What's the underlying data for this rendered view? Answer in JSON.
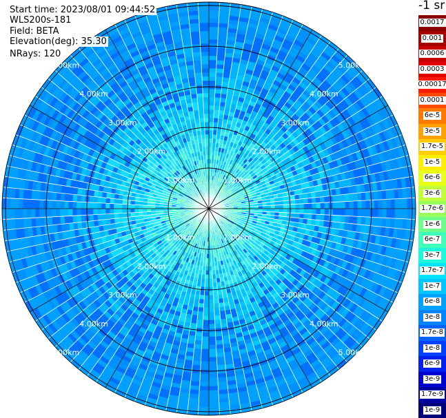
{
  "header": {
    "start_time": "Start time: 2023/08/01 09:44:52",
    "instrument": "WLS200s-181",
    "field": "Field: BETA",
    "elevation": "Elevation(deg): 35.30",
    "nrays": "NRays: 120"
  },
  "chart_data": {
    "type": "polar-ppi",
    "field": "BETA",
    "units": "-1 sr",
    "nrays": 120,
    "elevation_deg": 35.3,
    "range_rings_km": [
      1,
      2,
      3,
      4,
      5
    ],
    "ring_label": "km",
    "spokes_deg": [
      0,
      30,
      60,
      90,
      120,
      150,
      180,
      210,
      240,
      270,
      300,
      330
    ],
    "colorbar": [
      {
        "label": "0.0017",
        "color": "#8a0000"
      },
      {
        "label": "0.001",
        "color": "#a80000"
      },
      {
        "label": "0.0006",
        "color": "#c80000"
      },
      {
        "label": "0.0003",
        "color": "#e00000"
      },
      {
        "label": "0.00017",
        "color": "#ff1a00"
      },
      {
        "label": "0.0001",
        "color": "#ff4a00"
      },
      {
        "label": "6e-5",
        "color": "#ff7a00"
      },
      {
        "label": "3e-5",
        "color": "#ffa200"
      },
      {
        "label": "1.7e-5",
        "color": "#ffcc00"
      },
      {
        "label": "1e-5",
        "color": "#ffee00"
      },
      {
        "label": "6e-6",
        "color": "#e8ff18"
      },
      {
        "label": "3e-6",
        "color": "#c0ff3c"
      },
      {
        "label": "1.7e-6",
        "color": "#98ff5e"
      },
      {
        "label": "1e-6",
        "color": "#6cff8a"
      },
      {
        "label": "6e-7",
        "color": "#40ffb8"
      },
      {
        "label": "3e-7",
        "color": "#1cf8dc"
      },
      {
        "label": "1.7e-7",
        "color": "#00e4ff"
      },
      {
        "label": "1e-7",
        "color": "#00c4ff"
      },
      {
        "label": "6e-8",
        "color": "#00a2ff"
      },
      {
        "label": "3e-8",
        "color": "#0084ff"
      },
      {
        "label": "1.7e-8",
        "color": "#0062ff"
      },
      {
        "label": "1e-8",
        "color": "#0040ff"
      },
      {
        "label": "6e-9",
        "color": "#0020f0"
      },
      {
        "label": "3e-9",
        "color": "#0000d0"
      },
      {
        "label": "1.7e-9",
        "color": "#0000a0"
      },
      {
        "label": "1e-9",
        "color": "#000078"
      }
    ]
  }
}
